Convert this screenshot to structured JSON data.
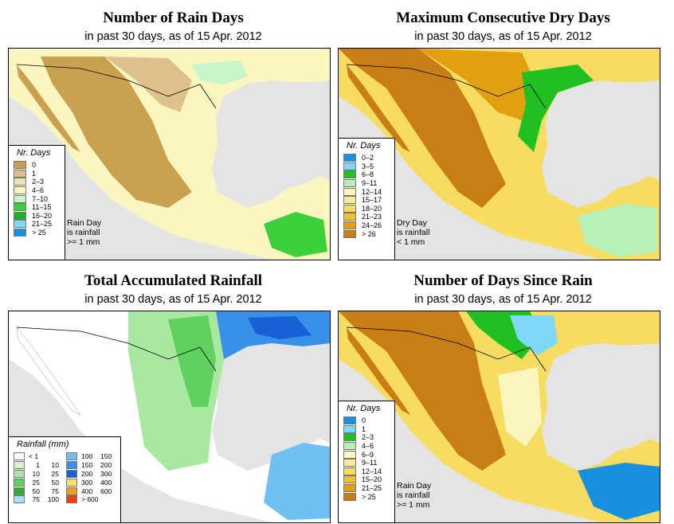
{
  "panels": [
    {
      "title": "Number of Rain Days",
      "subtitle": "in past 30 days, as of  15 Apr. 2012",
      "legend_title": "Nr. Days",
      "legend": [
        {
          "label": "0",
          "color": "#c8a04e"
        },
        {
          "label": "1",
          "color": "#dcc18c"
        },
        {
          "label": "2–3",
          "color": "#efe0b8"
        },
        {
          "label": "4–6",
          "color": "#fbf6c0"
        },
        {
          "label": "7–10",
          "color": "#c8f5c8"
        },
        {
          "label": "11–15",
          "color": "#3cd03c"
        },
        {
          "label": "16–20",
          "color": "#20b020"
        },
        {
          "label": "21–25",
          "color": "#80d8f8"
        },
        {
          "label": "> 25",
          "color": "#1890e0"
        }
      ],
      "note": [
        "Rain Day",
        "is rainfall",
        ">= 1 mm"
      ]
    },
    {
      "title": "Maximum Consecutive Dry Days",
      "subtitle": "in past 30 days, as of  15 Apr. 2012",
      "legend_title": "Nr. Days",
      "legend": [
        {
          "label": "0–2",
          "color": "#1890e0"
        },
        {
          "label": "3–5",
          "color": "#80d8f8"
        },
        {
          "label": "6–8",
          "color": "#20c020"
        },
        {
          "label": "9–11",
          "color": "#b8f0b8"
        },
        {
          "label": "12–14",
          "color": "#fbf6c0"
        },
        {
          "label": "15–17",
          "color": "#f8ec98"
        },
        {
          "label": "18–20",
          "color": "#f6dc60"
        },
        {
          "label": "21–23",
          "color": "#f0c030"
        },
        {
          "label": "24–26",
          "color": "#e0a010"
        },
        {
          "label": "> 26",
          "color": "#c87e14"
        }
      ],
      "note": [
        "Dry Day",
        "is rainfall",
        "< 1 mm"
      ]
    },
    {
      "title": "Total Accumulated Rainfall",
      "subtitle": "in past 30 days, as of  15 Apr. 2012",
      "legend_title": "Rainfall (mm)",
      "legend_left": [
        {
          "a": "< 1",
          "b": "",
          "color": "#ffffff"
        },
        {
          "a": "1",
          "b": "10",
          "color": "#d8f5d0"
        },
        {
          "a": "10",
          "b": "25",
          "color": "#a8e8a0"
        },
        {
          "a": "25",
          "b": "50",
          "color": "#60d060"
        },
        {
          "a": "50",
          "b": "75",
          "color": "#30b030"
        },
        {
          "a": "75",
          "b": "100",
          "color": "#a8e0f8"
        }
      ],
      "legend_right": [
        {
          "a": "100",
          "b": "150",
          "color": "#70c0f0"
        },
        {
          "a": "150",
          "b": "200",
          "color": "#3890e8"
        },
        {
          "a": "200",
          "b": "300",
          "color": "#1860d8"
        },
        {
          "a": "300",
          "b": "400",
          "color": "#f8e070"
        },
        {
          "a": "400",
          "b": "600",
          "color": "#f0a020"
        },
        {
          "a": "> 600",
          "b": "",
          "color": "#f04010"
        }
      ]
    },
    {
      "title": "Number of Days Since Rain",
      "subtitle": "in past 30 days, as of  15 Apr. 2012",
      "legend_title": "Nr. Days",
      "legend": [
        {
          "label": "0",
          "color": "#1890e0"
        },
        {
          "label": "1",
          "color": "#80d8f8"
        },
        {
          "label": "2–3",
          "color": "#20c020"
        },
        {
          "label": "4–6",
          "color": "#b8f0b8"
        },
        {
          "label": "6–9",
          "color": "#fbf6c0"
        },
        {
          "label": "9–11",
          "color": "#f8ec98"
        },
        {
          "label": "12–14",
          "color": "#f6dc60"
        },
        {
          "label": "15–20",
          "color": "#f0c030"
        },
        {
          "label": "21–25",
          "color": "#e0a010"
        },
        {
          "label": "> 25",
          "color": "#c87e14"
        }
      ],
      "note": [
        "Rain Day",
        "is rainfall",
        ">= 1 mm"
      ]
    }
  ]
}
